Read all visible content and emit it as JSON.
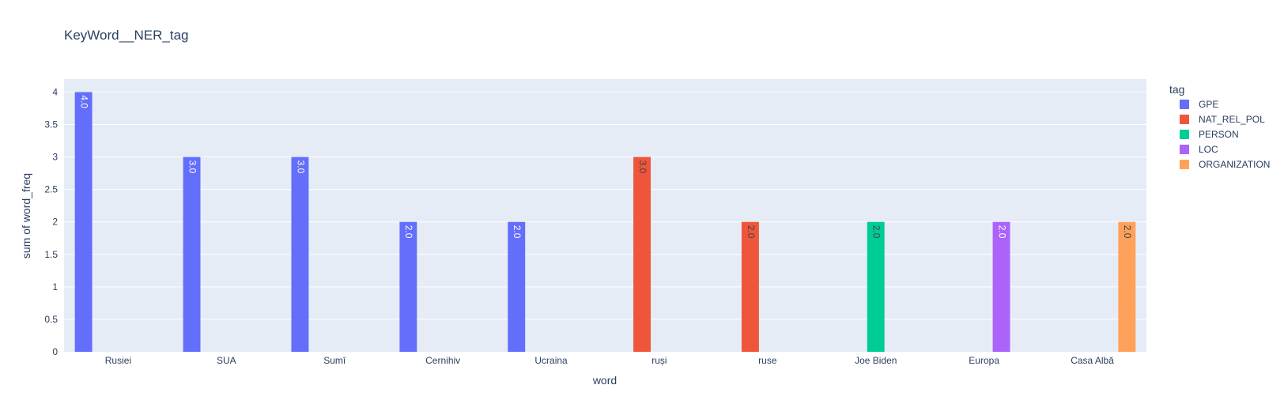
{
  "chart_data": {
    "type": "bar",
    "title": "KeyWord__NER_tag",
    "xlabel": "word",
    "ylabel": "sum of word_freq",
    "ylim": [
      0,
      4.2
    ],
    "yticks": [
      0,
      0.5,
      1,
      1.5,
      2,
      2.5,
      3,
      3.5,
      4
    ],
    "ytick_labels": [
      "0",
      "0.5",
      "1",
      "1.5",
      "2",
      "2.5",
      "3",
      "3.5",
      "4"
    ],
    "grid": true,
    "legend_title": "tag",
    "legend_position": "right",
    "categories": [
      "Rusiei",
      "SUA",
      "Sumî",
      "Cernihiv",
      "Ucraina",
      "ruși",
      "ruse",
      "Joe Biden",
      "Europa",
      "Casa Albă"
    ],
    "series": [
      {
        "name": "GPE",
        "color": "#636efa",
        "values": [
          4,
          3,
          3,
          2,
          2,
          null,
          null,
          null,
          null,
          null
        ],
        "labels": [
          "4.0",
          "3.0",
          "3.0",
          "2.0",
          "2.0",
          "",
          "",
          "",
          "",
          ""
        ]
      },
      {
        "name": "NAT_REL_POL",
        "color": "#ef553b",
        "values": [
          null,
          null,
          null,
          null,
          null,
          3,
          2,
          null,
          null,
          null
        ],
        "labels": [
          "",
          "",
          "",
          "",
          "",
          "3.0",
          "2.0",
          "",
          "",
          ""
        ]
      },
      {
        "name": "PERSON",
        "color": "#00cc96",
        "values": [
          null,
          null,
          null,
          null,
          null,
          null,
          null,
          2,
          null,
          null
        ],
        "labels": [
          "",
          "",
          "",
          "",
          "",
          "",
          "",
          "2.0",
          "",
          ""
        ]
      },
      {
        "name": "LOC",
        "color": "#ab63fa",
        "values": [
          null,
          null,
          null,
          null,
          null,
          null,
          null,
          null,
          2,
          null
        ],
        "labels": [
          "",
          "",
          "",
          "",
          "",
          "",
          "",
          "",
          "2.0",
          ""
        ]
      },
      {
        "name": "ORGANIZATION",
        "color": "#ffa15a",
        "values": [
          null,
          null,
          null,
          null,
          null,
          null,
          null,
          null,
          null,
          2
        ],
        "labels": [
          "",
          "",
          "",
          "",
          "",
          "",
          "",
          "",
          "",
          "2.0"
        ]
      }
    ]
  },
  "colors": {
    "plot_background": "#e5ecf6",
    "grid": "#ffffff",
    "text": "#2a3f5f"
  }
}
